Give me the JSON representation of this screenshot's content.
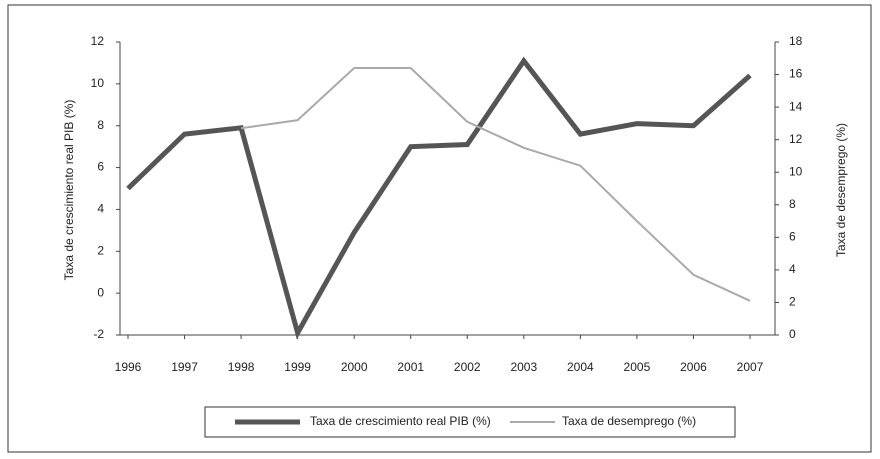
{
  "chart_data": {
    "type": "line",
    "categories": [
      "1996",
      "1997",
      "1998",
      "1999",
      "2000",
      "2001",
      "2002",
      "2003",
      "2004",
      "2005",
      "2006",
      "2007"
    ],
    "y_label": "Taxa de crescimiento real PIB (%)",
    "y2_label": "Taxa de desemprego (%)",
    "ylim": [
      -2,
      12
    ],
    "yticks": [
      -2,
      0,
      2,
      4,
      6,
      8,
      10,
      12
    ],
    "y2lim": [
      0,
      18
    ],
    "y2ticks": [
      0,
      2,
      4,
      6,
      8,
      10,
      12,
      14,
      16,
      18
    ],
    "series": [
      {
        "name": "Taxa de crescimiento real PIB (%)",
        "color": "#555555",
        "width": 5,
        "values": [
          5.0,
          7.6,
          7.9,
          -1.9,
          2.9,
          7.0,
          7.1,
          11.1,
          7.6,
          8.1,
          8.0,
          10.4
        ]
      },
      {
        "name": "Taxa de desemprego (%)",
        "color": "#aaaaaa",
        "width": 2,
        "axis": "y2",
        "values": [
          null,
          null,
          12.7,
          13.2,
          16.4,
          16.4,
          13.1,
          11.5,
          10.4,
          7.0,
          3.7,
          2.1
        ]
      }
    ]
  }
}
